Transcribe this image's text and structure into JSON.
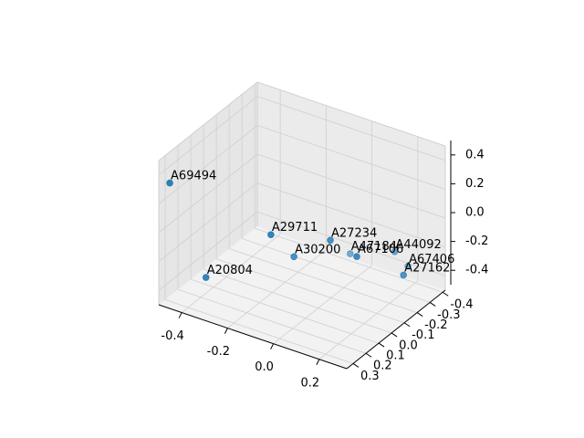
{
  "chart_data": {
    "type": "scatter",
    "projection": "3d",
    "title": "",
    "xlabel": "",
    "ylabel": "",
    "zlabel": "",
    "grid": true,
    "colors": {
      "point": "#1f77b4",
      "pane_back": "#ebebeb",
      "pane_side": "#e6e6e6",
      "pane_floor": "#f2f2f2",
      "grid": "#cfcfcf",
      "axis": "#000000",
      "text": "#000000"
    },
    "x_ticks": [
      "-0.4",
      "-0.2",
      "0.0",
      "0.2"
    ],
    "y_ticks": [
      "-0.4",
      "-0.3",
      "-0.2",
      "-0.1",
      "0.0",
      "0.1",
      "0.2",
      "0.3"
    ],
    "z_ticks": [
      "-0.4",
      "-0.2",
      "0.0",
      "0.2",
      "0.4"
    ],
    "points": [
      {
        "label": "A69494",
        "x": -0.48,
        "y": 0.3,
        "z": 0.32
      },
      {
        "label": "A29711",
        "x": -0.05,
        "y": 0.28,
        "z": 0.18
      },
      {
        "label": "A27234",
        "x": 0.12,
        "y": 0.12,
        "z": 0.12
      },
      {
        "label": "A67106",
        "x": 0.28,
        "y": 0.2,
        "z": 0.15
      },
      {
        "label": "A27162",
        "x": 0.4,
        "y": 0.05,
        "z": -0.02
      },
      {
        "label": "A30200",
        "x": -0.05,
        "y": 0.1,
        "z": -0.1
      },
      {
        "label": "A20804",
        "x": -0.35,
        "y": 0.25,
        "z": -0.3
      },
      {
        "label": "A44092",
        "x": 0.25,
        "y": -0.15,
        "z": -0.08
      },
      {
        "label": "A67406",
        "x": 0.28,
        "y": -0.2,
        "z": -0.2
      },
      {
        "label": "A47184",
        "x": 0.0,
        "y": -0.25,
        "z": -0.3
      }
    ]
  }
}
